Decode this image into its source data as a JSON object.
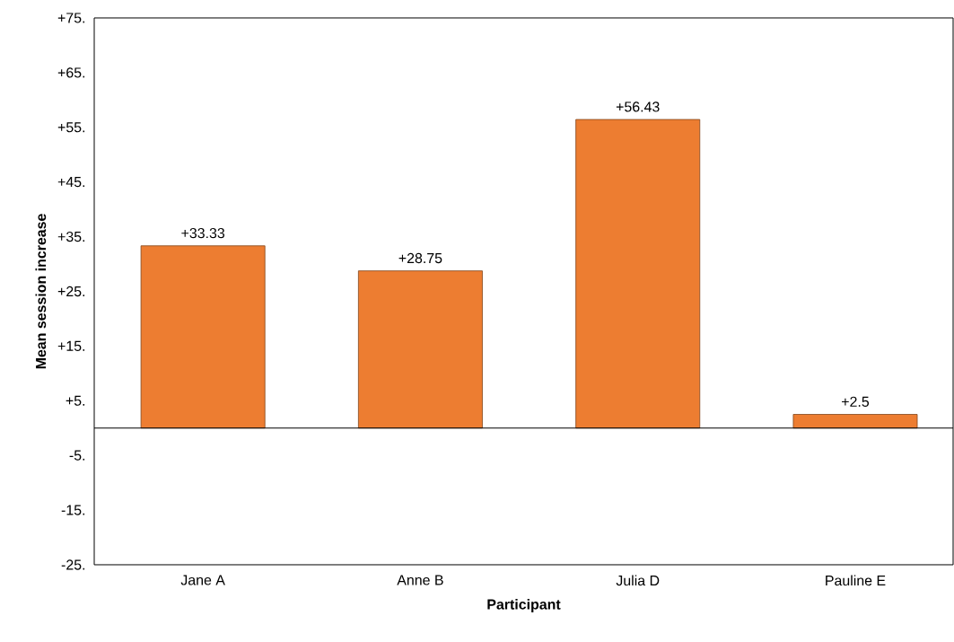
{
  "chart_data": {
    "type": "bar",
    "xlabel": "Participant",
    "ylabel": "Mean session increase",
    "categories": [
      "Jane A",
      "Anne B",
      "Julia D",
      "Pauline E"
    ],
    "values": [
      33.33,
      28.75,
      56.43,
      2.5
    ],
    "value_labels": [
      "+33.33",
      "+28.75",
      "+56.43",
      "+2.5"
    ],
    "color": "#ed7d31",
    "ylim": [
      -25,
      75
    ],
    "yticks": [
      {
        "value": 75,
        "label": "+75."
      },
      {
        "value": 65,
        "label": "+65."
      },
      {
        "value": 55,
        "label": "+55."
      },
      {
        "value": 45,
        "label": "+45."
      },
      {
        "value": 35,
        "label": "+35."
      },
      {
        "value": 25,
        "label": "+25."
      },
      {
        "value": 15,
        "label": "+15."
      },
      {
        "value": 5,
        "label": "+5."
      },
      {
        "value": -5,
        "label": "-5."
      },
      {
        "value": -15,
        "label": "-15."
      },
      {
        "value": -25,
        "label": "-25."
      }
    ],
    "grid": false
  }
}
